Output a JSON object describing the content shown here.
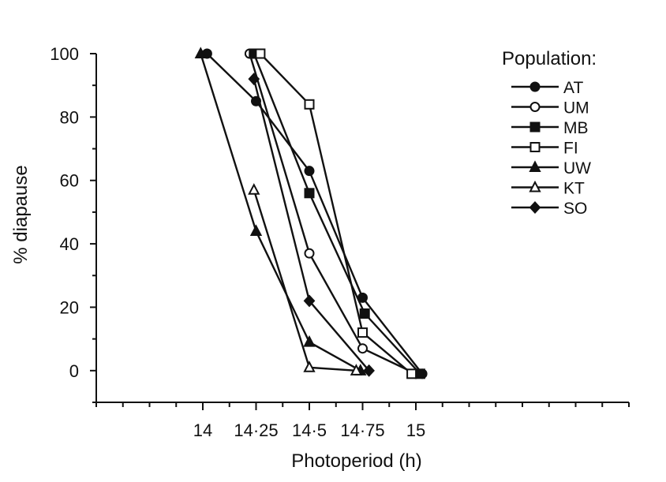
{
  "chart_data": {
    "type": "line",
    "xlabel": "Photoperiod (h)",
    "ylabel": "% diapause",
    "xlim": [
      13.5,
      16
    ],
    "ylim": [
      -10,
      100
    ],
    "x_ticks": [
      {
        "value": 14,
        "label": "14"
      },
      {
        "value": 14.25,
        "label": "14·25"
      },
      {
        "value": 14.5,
        "label": "14·5"
      },
      {
        "value": 14.75,
        "label": "14·75"
      },
      {
        "value": 15,
        "label": "15"
      }
    ],
    "y_ticks": [
      {
        "value": 0,
        "label": "0"
      },
      {
        "value": 20,
        "label": "20"
      },
      {
        "value": 40,
        "label": "40"
      },
      {
        "value": 60,
        "label": "60"
      },
      {
        "value": 80,
        "label": "80"
      },
      {
        "value": 100,
        "label": "100"
      }
    ],
    "legend": {
      "title": "Population:",
      "position": "top-right"
    },
    "series": [
      {
        "name": "AT",
        "marker": "circle-filled",
        "points": [
          [
            14.02,
            100
          ],
          [
            14.25,
            85
          ],
          [
            14.5,
            63
          ],
          [
            14.75,
            23
          ],
          [
            15.03,
            -1
          ]
        ]
      },
      {
        "name": "UM",
        "marker": "circle-open",
        "points": [
          [
            14.22,
            100
          ],
          [
            14.5,
            37
          ],
          [
            14.75,
            7
          ],
          [
            15.0,
            -1
          ]
        ]
      },
      {
        "name": "MB",
        "marker": "square-filled",
        "points": [
          [
            14.24,
            100
          ],
          [
            14.5,
            56
          ],
          [
            14.76,
            18
          ],
          [
            15.02,
            -1
          ]
        ]
      },
      {
        "name": "FI",
        "marker": "square-open",
        "points": [
          [
            14.27,
            100
          ],
          [
            14.5,
            84
          ],
          [
            14.75,
            12
          ],
          [
            14.98,
            -1
          ]
        ]
      },
      {
        "name": "UW",
        "marker": "triangle-filled",
        "points": [
          [
            13.99,
            100
          ],
          [
            14.25,
            44
          ],
          [
            14.5,
            9
          ],
          [
            14.74,
            0
          ]
        ]
      },
      {
        "name": "KT",
        "marker": "triangle-open",
        "points": [
          [
            14.24,
            57
          ],
          [
            14.5,
            1
          ],
          [
            14.72,
            0
          ]
        ]
      },
      {
        "name": "SO",
        "marker": "diamond-filled",
        "points": [
          [
            14.24,
            92
          ],
          [
            14.5,
            22
          ],
          [
            14.78,
            0
          ]
        ]
      }
    ]
  }
}
